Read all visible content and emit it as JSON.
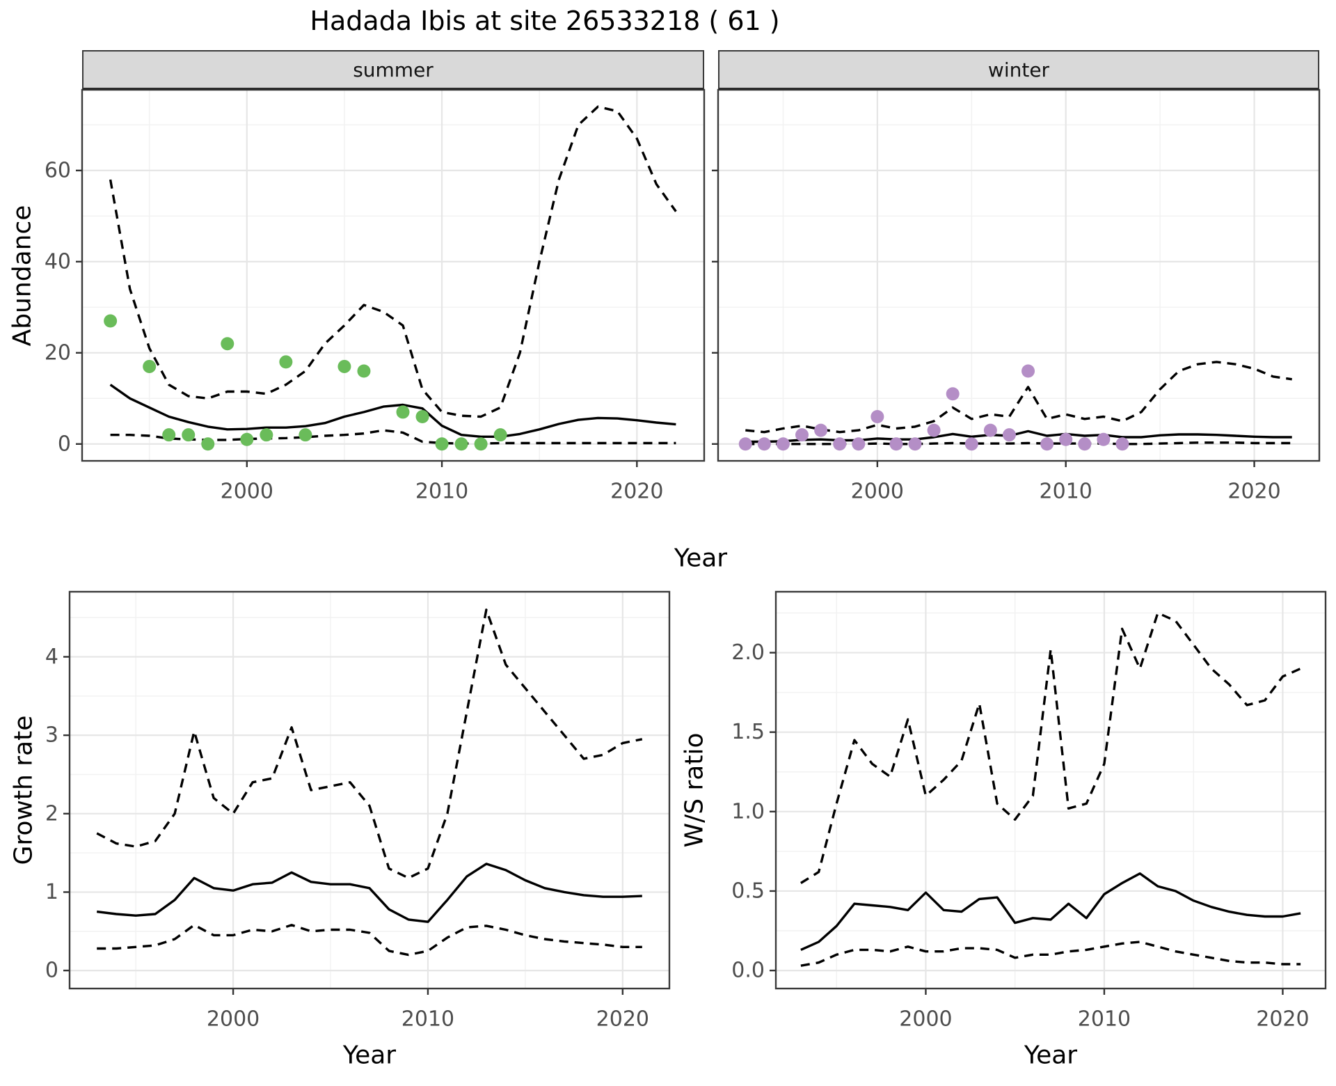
{
  "title": "Hadada Ibis at site 26533218 ( 61 )",
  "colors": {
    "summer_point": "#6abc5a",
    "winter_point": "#b48ec6",
    "line": "#000000",
    "grid_major": "#e6e6e6",
    "grid_minor": "#f2f2f2",
    "panel_border": "#3a3a3a",
    "strip_bg": "#d9d9d9",
    "tick_label": "#4d4d4d",
    "tick_mark": "#333333"
  },
  "top": {
    "ylab": "Abundance",
    "xlab": "Year",
    "facets": [
      "summer",
      "winter"
    ]
  },
  "bottom_left": {
    "ylab": "Growth rate",
    "xlab": "Year"
  },
  "bottom_right": {
    "ylab": "W/S ratio",
    "xlab": "Year"
  },
  "chart_data": [
    {
      "id": "summer",
      "type": "line",
      "facet": "summer",
      "title": "Hadada Ibis at site 26533218 ( 61 )",
      "xlabel": "Year",
      "ylabel": "Abundance",
      "start_year": 1993,
      "xticks": [
        2000,
        2010,
        2020
      ],
      "yticks": [
        0,
        20,
        40,
        60
      ],
      "ylim": [
        0,
        74
      ],
      "series": [
        {
          "name": "fit",
          "style": "solid",
          "values": [
            13,
            10,
            8,
            6,
            4.8,
            3.8,
            3.2,
            3.3,
            3.6,
            3.6,
            3.9,
            4.6,
            6,
            7,
            8.2,
            8.6,
            7.8,
            4,
            2,
            1.6,
            1.6,
            2.2,
            3.2,
            4.4,
            5.3,
            5.7,
            5.6,
            5.2,
            4.7,
            4.3
          ]
        },
        {
          "name": "upper_ci",
          "style": "dashed",
          "values": [
            58,
            34,
            21,
            13,
            10.5,
            10,
            11.5,
            11.5,
            11,
            13,
            16,
            22,
            26,
            30.5,
            29,
            26,
            12,
            7,
            6.2,
            6,
            8,
            20,
            40,
            58,
            70,
            74,
            73,
            67,
            57,
            51
          ]
        },
        {
          "name": "lower_ci",
          "style": "dashed",
          "values": [
            2,
            2,
            1.8,
            1.2,
            1,
            0.9,
            0.9,
            1.1,
            1.2,
            1.3,
            1.5,
            1.8,
            2,
            2.3,
            3,
            2.5,
            0.5,
            0.2,
            0.1,
            0.1,
            0.2,
            0.2,
            0.2,
            0.2,
            0.2,
            0.2,
            0.2,
            0.2,
            0.2,
            0.2
          ]
        }
      ],
      "points": {
        "name": "observed_summer_counts",
        "color_key": "summer_point",
        "data": [
          [
            1993,
            27
          ],
          [
            1995,
            17
          ],
          [
            1996,
            2
          ],
          [
            1997,
            2
          ],
          [
            1998,
            0
          ],
          [
            1999,
            22
          ],
          [
            2000,
            1
          ],
          [
            2001,
            2
          ],
          [
            2002,
            18
          ],
          [
            2003,
            2
          ],
          [
            2005,
            17
          ],
          [
            2006,
            16
          ],
          [
            2008,
            7
          ],
          [
            2009,
            6
          ],
          [
            2010,
            0
          ],
          [
            2011,
            0
          ],
          [
            2012,
            0
          ],
          [
            2013,
            2
          ]
        ]
      }
    },
    {
      "id": "winter",
      "type": "line",
      "facet": "winter",
      "xlabel": "Year",
      "ylabel": "Abundance",
      "start_year": 1993,
      "xticks": [
        2000,
        2010,
        2020
      ],
      "yticks": [
        0,
        20,
        40,
        60
      ],
      "ylim": [
        0,
        74
      ],
      "series": [
        {
          "name": "fit",
          "style": "solid",
          "values": [
            0.5,
            0.5,
            0.6,
            0.9,
            1,
            0.8,
            0.8,
            1.2,
            1,
            1,
            1.5,
            2.2,
            1.6,
            2,
            1.8,
            2.8,
            1.8,
            2.2,
            1.8,
            2,
            1.5,
            1.5,
            1.9,
            2.1,
            2.1,
            2,
            1.8,
            1.6,
            1.5,
            1.5
          ]
        },
        {
          "name": "upper_ci",
          "style": "dashed",
          "values": [
            3,
            2.6,
            3.4,
            4,
            3.2,
            2.6,
            3,
            4.2,
            3.4,
            3.8,
            5,
            8,
            5.5,
            6.5,
            6,
            12.5,
            5.5,
            6.5,
            5.5,
            6,
            5,
            7,
            12,
            16,
            17.5,
            18,
            17.5,
            16.5,
            14.8,
            14.2
          ]
        },
        {
          "name": "lower_ci",
          "style": "dashed",
          "values": [
            0,
            0,
            0,
            0,
            0,
            0,
            0,
            0.1,
            0,
            0,
            0.1,
            0.2,
            0.1,
            0.1,
            0.1,
            0.2,
            0.1,
            0.1,
            0.1,
            0.1,
            0,
            0,
            0.1,
            0.2,
            0.3,
            0.3,
            0.3,
            0.2,
            0.2,
            0.2
          ]
        }
      ],
      "points": {
        "name": "observed_winter_counts",
        "color_key": "winter_point",
        "data": [
          [
            1993,
            0
          ],
          [
            1994,
            0
          ],
          [
            1995,
            0
          ],
          [
            1996,
            2
          ],
          [
            1997,
            3
          ],
          [
            1998,
            0
          ],
          [
            1999,
            0
          ],
          [
            2000,
            6
          ],
          [
            2001,
            0
          ],
          [
            2002,
            0
          ],
          [
            2003,
            3
          ],
          [
            2004,
            11
          ],
          [
            2005,
            0
          ],
          [
            2006,
            3
          ],
          [
            2007,
            2
          ],
          [
            2008,
            16
          ],
          [
            2009,
            0
          ],
          [
            2010,
            1
          ],
          [
            2011,
            0
          ],
          [
            2012,
            1
          ],
          [
            2013,
            0
          ]
        ]
      }
    },
    {
      "id": "growth",
      "type": "line",
      "xlabel": "Year",
      "ylabel": "Growth rate",
      "start_year": 1993,
      "xticks": [
        2000,
        2010,
        2020
      ],
      "yticks": [
        0,
        1,
        2,
        3,
        4
      ],
      "ylim": [
        0,
        4.6
      ],
      "series": [
        {
          "name": "fit",
          "style": "solid",
          "values": [
            0.75,
            0.72,
            0.7,
            0.72,
            0.9,
            1.18,
            1.05,
            1.02,
            1.1,
            1.12,
            1.25,
            1.13,
            1.1,
            1.1,
            1.05,
            0.78,
            0.65,
            0.62,
            0.9,
            1.2,
            1.36,
            1.28,
            1.15,
            1.05,
            1,
            0.96,
            0.94,
            0.94,
            0.95
          ]
        },
        {
          "name": "upper_ci",
          "style": "dashed",
          "values": [
            1.75,
            1.62,
            1.58,
            1.65,
            2,
            3.05,
            2.2,
            2,
            2.4,
            2.45,
            3.1,
            2.3,
            2.35,
            2.4,
            2.1,
            1.3,
            1.18,
            1.3,
            2,
            3.3,
            4.6,
            3.9,
            3.6,
            3.3,
            3,
            2.7,
            2.75,
            2.9,
            2.95
          ]
        },
        {
          "name": "lower_ci",
          "style": "dashed",
          "values": [
            0.28,
            0.28,
            0.3,
            0.32,
            0.4,
            0.58,
            0.45,
            0.45,
            0.52,
            0.5,
            0.58,
            0.5,
            0.52,
            0.52,
            0.48,
            0.25,
            0.2,
            0.25,
            0.42,
            0.55,
            0.57,
            0.52,
            0.45,
            0.4,
            0.37,
            0.35,
            0.33,
            0.3,
            0.3
          ]
        }
      ]
    },
    {
      "id": "ws",
      "type": "line",
      "xlabel": "Year",
      "ylabel": "W/S ratio",
      "start_year": 1993,
      "xticks": [
        2000,
        2010,
        2020
      ],
      "yticks": [
        0,
        0.5,
        1,
        1.5,
        2
      ],
      "ytick_labels": [
        "0.0",
        "0.5",
        "1.0",
        "1.5",
        "2.0"
      ],
      "ylim": [
        0,
        2.27
      ],
      "series": [
        {
          "name": "fit",
          "style": "solid",
          "values": [
            0.13,
            0.18,
            0.28,
            0.42,
            0.41,
            0.4,
            0.38,
            0.49,
            0.38,
            0.37,
            0.45,
            0.46,
            0.3,
            0.33,
            0.32,
            0.42,
            0.33,
            0.48,
            0.55,
            0.61,
            0.53,
            0.5,
            0.44,
            0.4,
            0.37,
            0.35,
            0.34,
            0.34,
            0.36
          ]
        },
        {
          "name": "upper_ci",
          "style": "dashed",
          "values": [
            0.55,
            0.62,
            1.05,
            1.45,
            1.3,
            1.22,
            1.58,
            1.1,
            1.2,
            1.32,
            1.68,
            1.05,
            0.95,
            1.1,
            2.02,
            1.02,
            1.05,
            1.3,
            2.15,
            1.9,
            2.25,
            2.2,
            2.05,
            1.9,
            1.8,
            1.67,
            1.7,
            1.85,
            1.9
          ]
        },
        {
          "name": "lower_ci",
          "style": "dashed",
          "values": [
            0.03,
            0.05,
            0.1,
            0.13,
            0.13,
            0.12,
            0.15,
            0.12,
            0.12,
            0.14,
            0.14,
            0.13,
            0.08,
            0.1,
            0.1,
            0.12,
            0.13,
            0.15,
            0.17,
            0.18,
            0.15,
            0.12,
            0.1,
            0.08,
            0.06,
            0.05,
            0.05,
            0.04,
            0.04
          ]
        }
      ]
    }
  ]
}
